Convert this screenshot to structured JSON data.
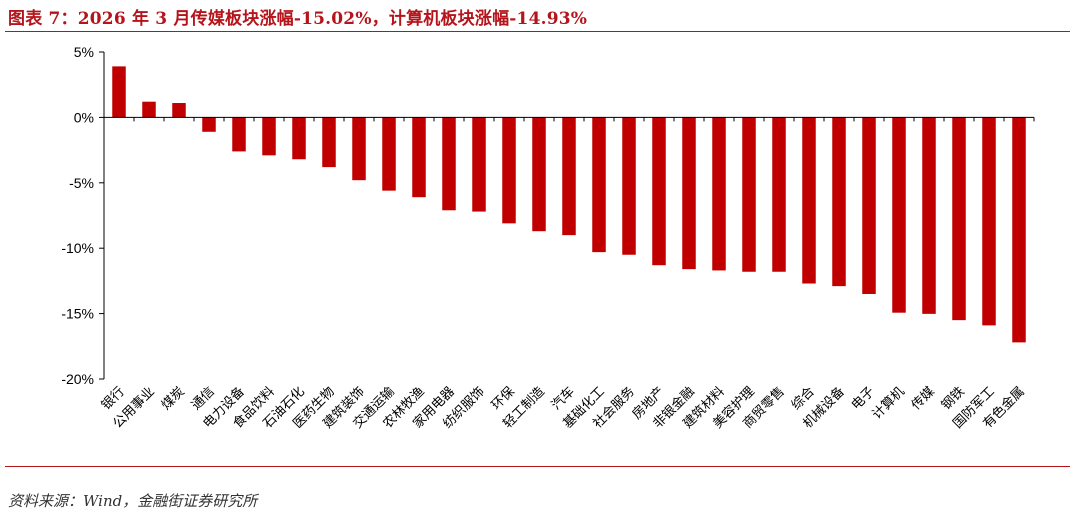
{
  "figure": {
    "title": "图表 7：2026 年 3 月传媒板块涨幅-15.02%，计算机板块涨幅-14.93%",
    "source": "资料来源：Wind，金融街证券研究所"
  },
  "colors": {
    "bar": "#c00000",
    "accent": "#b5141b"
  },
  "chart_data": {
    "type": "bar",
    "title": "",
    "xlabel": "",
    "ylabel": "",
    "ylim": [
      -20,
      5
    ],
    "y_ticks": [
      "5%",
      "0%",
      "-5%",
      "-10%",
      "-15%",
      "-20%"
    ],
    "y_tick_values": [
      5,
      0,
      -5,
      -10,
      -15,
      -20
    ],
    "grid": false,
    "legend": "none",
    "categories": [
      "银行",
      "公用事业",
      "煤炭",
      "通信",
      "电力设备",
      "食品饮料",
      "石油石化",
      "医药生物",
      "建筑装饰",
      "交通运输",
      "农林牧渔",
      "家用电器",
      "纺织服饰",
      "环保",
      "轻工制造",
      "汽车",
      "基础化工",
      "社会服务",
      "房地产",
      "非银金融",
      "建筑材料",
      "美容护理",
      "商贸零售",
      "综合",
      "机械设备",
      "电子",
      "计算机",
      "传媒",
      "钢铁",
      "国防军工",
      "有色金属"
    ],
    "values": [
      3.9,
      1.2,
      1.1,
      -1.1,
      -2.6,
      -2.9,
      -3.2,
      -3.8,
      -4.8,
      -5.6,
      -6.1,
      -7.1,
      -7.2,
      -8.1,
      -8.7,
      -9.0,
      -10.3,
      -10.5,
      -11.3,
      -11.6,
      -11.7,
      -11.8,
      -11.8,
      -12.7,
      -12.9,
      -13.5,
      -14.93,
      -15.02,
      -15.5,
      -15.9,
      -17.2
    ]
  }
}
